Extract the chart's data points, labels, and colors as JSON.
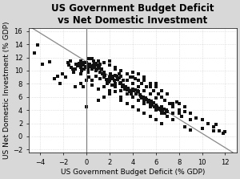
{
  "title": "US Government Budget Deficit\nvs Net Domestic Investment",
  "xlabel": "US Government Budget Deficit (% GDP)",
  "ylabel": "US Net Domestic Investment (% GDP)",
  "xlim": [
    -5,
    13
  ],
  "ylim": [
    -2.5,
    16.5
  ],
  "xticks": [
    -4,
    -2,
    0,
    2,
    4,
    6,
    8,
    10,
    12
  ],
  "yticks": [
    -2,
    0,
    2,
    4,
    6,
    8,
    10,
    12,
    14,
    16
  ],
  "regression_line": [
    [
      -5,
      16.8
    ],
    [
      13,
      -2.8
    ]
  ],
  "scatter_color": "#111111",
  "scatter_size": 5,
  "bg_color": "#d8d8d8",
  "plot_bg_color": "#ffffff",
  "grid_color": "#cccccc",
  "title_fontsize": 8.5,
  "label_fontsize": 6.5,
  "tick_fontsize": 6,
  "points": [
    [
      -4.5,
      12.7
    ],
    [
      -4.2,
      13.9
    ],
    [
      -3.8,
      11.0
    ],
    [
      -3.2,
      11.3
    ],
    [
      -2.8,
      8.8
    ],
    [
      -2.5,
      9.2
    ],
    [
      -2.3,
      8.0
    ],
    [
      -2.1,
      9.5
    ],
    [
      -1.8,
      9.0
    ],
    [
      -1.6,
      11.2
    ],
    [
      -1.5,
      10.8
    ],
    [
      -1.4,
      11.5
    ],
    [
      -1.3,
      10.5
    ],
    [
      -1.2,
      10.2
    ],
    [
      -1.1,
      9.8
    ],
    [
      -1.0,
      10.3
    ],
    [
      -0.9,
      11.0
    ],
    [
      -0.8,
      10.7
    ],
    [
      -0.7,
      10.9
    ],
    [
      -0.6,
      11.1
    ],
    [
      -0.5,
      10.5
    ],
    [
      -0.4,
      10.0
    ],
    [
      -0.3,
      10.8
    ],
    [
      -0.2,
      11.2
    ],
    [
      -0.1,
      10.6
    ],
    [
      0.0,
      10.5
    ],
    [
      0.1,
      10.1
    ],
    [
      0.2,
      10.8
    ],
    [
      0.3,
      11.0
    ],
    [
      0.4,
      10.7
    ],
    [
      0.5,
      10.3
    ],
    [
      0.6,
      10.9
    ],
    [
      0.7,
      10.5
    ],
    [
      0.8,
      11.1
    ],
    [
      0.9,
      10.2
    ],
    [
      1.0,
      10.4
    ],
    [
      0.0,
      11.2
    ],
    [
      0.1,
      9.8
    ],
    [
      -0.2,
      10.3
    ],
    [
      0.3,
      10.6
    ],
    [
      -0.5,
      11.5
    ],
    [
      0.5,
      11.8
    ],
    [
      0.7,
      11.0
    ],
    [
      0.9,
      10.8
    ],
    [
      1.1,
      10.5
    ],
    [
      1.2,
      9.8
    ],
    [
      1.3,
      10.2
    ],
    [
      1.4,
      9.5
    ],
    [
      1.5,
      9.0
    ],
    [
      1.6,
      9.3
    ],
    [
      1.7,
      8.7
    ],
    [
      1.8,
      8.5
    ],
    [
      1.9,
      8.3
    ],
    [
      2.0,
      9.0
    ],
    [
      2.1,
      9.5
    ],
    [
      2.2,
      9.2
    ],
    [
      2.3,
      8.8
    ],
    [
      2.4,
      8.5
    ],
    [
      2.5,
      9.3
    ],
    [
      2.6,
      9.1
    ],
    [
      2.7,
      8.6
    ],
    [
      2.8,
      8.9
    ],
    [
      2.9,
      8.0
    ],
    [
      3.0,
      8.2
    ],
    [
      3.1,
      7.5
    ],
    [
      3.2,
      7.8
    ],
    [
      3.3,
      7.2
    ],
    [
      3.4,
      7.5
    ],
    [
      3.5,
      7.1
    ],
    [
      3.6,
      7.3
    ],
    [
      3.7,
      6.8
    ],
    [
      3.8,
      7.0
    ],
    [
      3.9,
      6.5
    ],
    [
      4.0,
      7.2
    ],
    [
      4.1,
      6.9
    ],
    [
      4.2,
      7.1
    ],
    [
      4.3,
      6.5
    ],
    [
      4.4,
      7.0
    ],
    [
      4.5,
      6.8
    ],
    [
      4.6,
      6.3
    ],
    [
      4.7,
      6.1
    ],
    [
      4.8,
      5.8
    ],
    [
      4.9,
      6.0
    ],
    [
      5.0,
      5.5
    ],
    [
      5.1,
      5.8
    ],
    [
      5.2,
      5.6
    ],
    [
      5.3,
      5.2
    ],
    [
      5.4,
      5.5
    ],
    [
      5.5,
      5.0
    ],
    [
      5.6,
      5.3
    ],
    [
      5.7,
      4.8
    ],
    [
      5.8,
      5.1
    ],
    [
      5.9,
      4.5
    ],
    [
      6.0,
      4.8
    ],
    [
      6.1,
      4.5
    ],
    [
      6.2,
      4.2
    ],
    [
      6.3,
      4.3
    ],
    [
      6.4,
      4.0
    ],
    [
      6.5,
      4.5
    ],
    [
      6.6,
      3.8
    ],
    [
      6.7,
      4.2
    ],
    [
      6.8,
      3.5
    ],
    [
      6.9,
      4.0
    ],
    [
      7.0,
      3.8
    ],
    [
      7.5,
      5.0
    ],
    [
      7.8,
      5.2
    ],
    [
      8.0,
      3.5
    ],
    [
      8.2,
      3.0
    ],
    [
      8.5,
      3.8
    ],
    [
      9.0,
      2.5
    ],
    [
      9.5,
      2.8
    ],
    [
      10.0,
      2.5
    ],
    [
      10.5,
      2.0
    ],
    [
      11.0,
      1.5
    ],
    [
      11.2,
      1.8
    ],
    [
      11.5,
      0.8
    ],
    [
      11.8,
      0.5
    ],
    [
      12.0,
      0.7
    ],
    [
      0.0,
      4.5
    ],
    [
      1.0,
      5.5
    ],
    [
      1.5,
      6.0
    ],
    [
      2.0,
      6.5
    ],
    [
      2.5,
      7.5
    ],
    [
      3.0,
      6.0
    ],
    [
      0.5,
      8.5
    ],
    [
      -0.3,
      7.5
    ],
    [
      1.8,
      8.0
    ],
    [
      2.2,
      7.8
    ],
    [
      3.5,
      8.5
    ],
    [
      4.0,
      8.0
    ],
    [
      4.5,
      7.5
    ],
    [
      5.0,
      7.0
    ],
    [
      5.5,
      6.5
    ],
    [
      6.0,
      5.8
    ],
    [
      0.8,
      9.2
    ],
    [
      1.2,
      8.8
    ],
    [
      2.8,
      9.5
    ],
    [
      3.2,
      8.5
    ],
    [
      3.8,
      9.0
    ],
    [
      4.2,
      8.8
    ],
    [
      4.8,
      8.0
    ],
    [
      5.2,
      7.5
    ],
    [
      5.8,
      7.0
    ],
    [
      6.2,
      6.5
    ],
    [
      6.8,
      5.5
    ],
    [
      7.2,
      5.0
    ],
    [
      7.5,
      4.5
    ],
    [
      8.0,
      4.0
    ],
    [
      8.5,
      1.5
    ],
    [
      9.0,
      1.0
    ],
    [
      -0.5,
      9.5
    ],
    [
      0.2,
      9.0
    ],
    [
      0.8,
      10.0
    ],
    [
      1.5,
      9.8
    ],
    [
      2.0,
      8.5
    ],
    [
      2.5,
      8.0
    ],
    [
      3.0,
      7.0
    ],
    [
      3.5,
      6.5
    ],
    [
      4.0,
      6.0
    ],
    [
      4.5,
      5.5
    ],
    [
      5.0,
      5.0
    ],
    [
      5.5,
      4.5
    ],
    [
      6.0,
      4.0
    ],
    [
      6.5,
      3.5
    ],
    [
      7.0,
      3.0
    ],
    [
      7.5,
      2.5
    ],
    [
      1.0,
      11.5
    ],
    [
      1.5,
      11.2
    ],
    [
      2.0,
      10.8
    ],
    [
      2.5,
      10.5
    ],
    [
      3.0,
      10.0
    ],
    [
      3.5,
      9.5
    ],
    [
      4.0,
      9.0
    ],
    [
      4.5,
      9.5
    ],
    [
      5.0,
      8.5
    ],
    [
      5.5,
      8.0
    ],
    [
      6.0,
      7.5
    ],
    [
      6.5,
      7.0
    ],
    [
      -1.0,
      7.5
    ],
    [
      -0.5,
      8.0
    ],
    [
      0.0,
      8.5
    ],
    [
      0.5,
      7.8
    ],
    [
      1.0,
      7.2
    ],
    [
      1.5,
      7.5
    ],
    [
      2.0,
      7.0
    ],
    [
      2.5,
      6.8
    ],
    [
      3.0,
      5.5
    ],
    [
      3.5,
      5.0
    ],
    [
      4.0,
      4.5
    ],
    [
      4.5,
      4.0
    ],
    [
      5.0,
      3.5
    ],
    [
      5.5,
      3.0
    ],
    [
      6.0,
      2.5
    ],
    [
      6.5,
      2.0
    ],
    [
      0.2,
      11.8
    ],
    [
      -0.4,
      11.0
    ],
    [
      0.6,
      11.5
    ],
    [
      1.2,
      11.0
    ],
    [
      2.0,
      11.5
    ],
    [
      2.5,
      10.2
    ],
    [
      3.0,
      9.2
    ],
    [
      4.0,
      9.8
    ],
    [
      4.5,
      8.5
    ],
    [
      5.0,
      9.0
    ],
    [
      5.5,
      7.5
    ],
    [
      6.0,
      8.0
    ],
    [
      6.5,
      6.0
    ],
    [
      7.0,
      6.5
    ],
    [
      7.5,
      3.5
    ],
    [
      8.0,
      5.0
    ],
    [
      8.5,
      4.5
    ],
    [
      9.0,
      3.5
    ],
    [
      10.0,
      1.2
    ],
    [
      11.0,
      0.8
    ]
  ]
}
